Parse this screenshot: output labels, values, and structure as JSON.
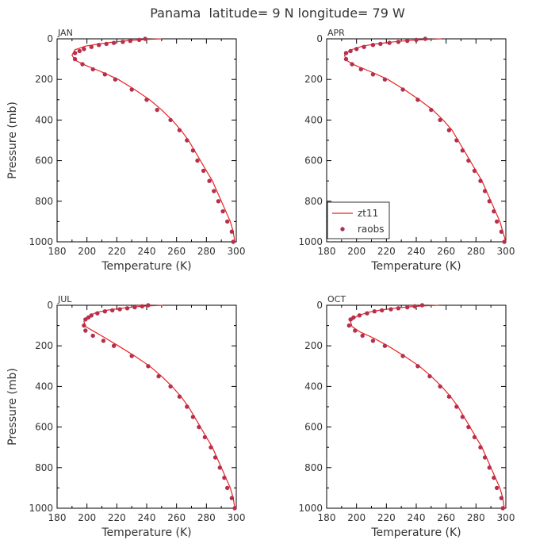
{
  "title": "Panama  latitude= 9 N longitude= 79 W",
  "colors": {
    "model_line": "#e8231f",
    "obs_points": "#b5304f",
    "axis": "#000000",
    "text": "#333333"
  },
  "chart_data": [
    {
      "type": "line",
      "panel": "JAN",
      "xlabel": "Temperature (K)",
      "ylabel": "Pressure (mb)",
      "xlim": [
        180,
        300
      ],
      "ylim": [
        1000,
        0
      ],
      "xticks": [
        180,
        200,
        220,
        240,
        260,
        280,
        300
      ],
      "yticks": [
        0,
        200,
        400,
        600,
        800,
        1000
      ],
      "grid": false,
      "series": [
        {
          "name": "zt11",
          "style": "line",
          "x": [
            250,
            239,
            229,
            219,
            209,
            199,
            192,
            190,
            192,
            199,
            209,
            221,
            232,
            242,
            250,
            257,
            263,
            268,
            272,
            276,
            280,
            284,
            287,
            290,
            293,
            296,
            298,
            299
          ],
          "y": [
            0,
            3,
            8,
            15,
            24,
            36,
            54,
            80,
            105,
            130,
            160,
            200,
            250,
            300,
            350,
            400,
            450,
            500,
            550,
            600,
            650,
            700,
            750,
            800,
            850,
            900,
            950,
            1000
          ]
        },
        {
          "name": "raobs",
          "style": "points",
          "x": [
            239,
            235,
            229,
            224,
            218,
            213,
            208,
            203,
            198,
            195,
            192,
            192,
            197,
            204,
            212,
            219,
            230,
            240,
            247,
            256,
            262,
            267,
            271,
            274,
            278,
            282,
            285,
            288,
            291,
            294,
            297,
            298
          ],
          "y": [
            0,
            5,
            10,
            15,
            20,
            25,
            30,
            40,
            50,
            60,
            70,
            100,
            125,
            150,
            175,
            200,
            250,
            300,
            350,
            400,
            450,
            500,
            550,
            600,
            650,
            700,
            750,
            800,
            850,
            900,
            950,
            1000
          ]
        }
      ]
    },
    {
      "type": "line",
      "panel": "APR",
      "xlabel": "Temperature (K)",
      "ylabel": "",
      "xlim": [
        180,
        300
      ],
      "ylim": [
        1000,
        0
      ],
      "xticks": [
        180,
        200,
        220,
        240,
        260,
        280,
        300
      ],
      "yticks": [
        0,
        200,
        400,
        600,
        800,
        1000
      ],
      "grid": false,
      "legend": {
        "position": "bottom-left",
        "entries": [
          "zt11",
          "raobs"
        ]
      },
      "series": [
        {
          "name": "zt11",
          "style": "line",
          "x": [
            257,
            246,
            235,
            225,
            214,
            204,
            196,
            192,
            193,
            199,
            209,
            221,
            232,
            242,
            251,
            258,
            264,
            268,
            272,
            276,
            280,
            284,
            287,
            290,
            293,
            296,
            298,
            300
          ],
          "y": [
            0,
            3,
            8,
            15,
            24,
            36,
            55,
            80,
            105,
            130,
            160,
            200,
            250,
            300,
            350,
            400,
            450,
            500,
            550,
            600,
            650,
            700,
            750,
            800,
            850,
            900,
            950,
            1000
          ]
        },
        {
          "name": "raobs",
          "style": "points",
          "x": [
            246,
            240,
            234,
            228,
            222,
            216,
            211,
            205,
            200,
            196,
            193,
            193,
            197,
            203,
            211,
            219,
            231,
            241,
            250,
            256,
            262,
            267,
            271,
            275,
            279,
            283,
            286,
            289,
            292,
            294,
            297,
            299
          ],
          "y": [
            0,
            5,
            10,
            15,
            20,
            25,
            30,
            40,
            50,
            60,
            70,
            100,
            125,
            150,
            175,
            200,
            250,
            300,
            350,
            400,
            450,
            500,
            550,
            600,
            650,
            700,
            750,
            800,
            850,
            900,
            950,
            1000
          ]
        }
      ]
    },
    {
      "type": "line",
      "panel": "JUL",
      "xlabel": "Temperature (K)",
      "ylabel": "Pressure (mb)",
      "xlim": [
        180,
        300
      ],
      "ylim": [
        1000,
        0
      ],
      "xticks": [
        180,
        200,
        220,
        240,
        260,
        280,
        300
      ],
      "yticks": [
        0,
        200,
        400,
        600,
        800,
        1000
      ],
      "grid": false,
      "series": [
        {
          "name": "zt11",
          "style": "line",
          "x": [
            251,
            241,
            232,
            223,
            214,
            206,
            201,
            198,
            199,
            205,
            212,
            221,
            232,
            242,
            250,
            257,
            263,
            268,
            272,
            276,
            280,
            284,
            287,
            290,
            293,
            296,
            298,
            299
          ],
          "y": [
            0,
            3,
            8,
            15,
            24,
            36,
            55,
            80,
            105,
            130,
            160,
            200,
            250,
            300,
            350,
            400,
            450,
            500,
            550,
            600,
            650,
            700,
            750,
            800,
            850,
            900,
            950,
            1000
          ]
        },
        {
          "name": "raobs",
          "style": "points",
          "x": [
            241,
            237,
            232,
            227,
            222,
            217,
            212,
            207,
            203,
            201,
            199,
            198,
            199,
            204,
            211,
            218,
            230,
            241,
            248,
            256,
            262,
            267,
            271,
            275,
            279,
            283,
            286,
            289,
            292,
            294,
            297,
            299
          ],
          "y": [
            0,
            5,
            10,
            15,
            20,
            25,
            30,
            40,
            50,
            60,
            70,
            100,
            125,
            150,
            175,
            200,
            250,
            300,
            350,
            400,
            450,
            500,
            550,
            600,
            650,
            700,
            750,
            800,
            850,
            900,
            950,
            1000
          ]
        }
      ]
    },
    {
      "type": "line",
      "panel": "OCT",
      "xlabel": "Temperature (K)",
      "ylabel": "",
      "xlim": [
        180,
        300
      ],
      "ylim": [
        1000,
        0
      ],
      "xticks": [
        180,
        200,
        220,
        240,
        260,
        280,
        300
      ],
      "yticks": [
        0,
        200,
        400,
        600,
        800,
        1000
      ],
      "grid": false,
      "series": [
        {
          "name": "zt11",
          "style": "line",
          "x": [
            255,
            245,
            235,
            225,
            216,
            207,
            200,
            196,
            197,
            202,
            211,
            221,
            232,
            242,
            250,
            257,
            263,
            268,
            272,
            276,
            280,
            284,
            287,
            290,
            293,
            296,
            298,
            299
          ],
          "y": [
            0,
            3,
            8,
            15,
            24,
            36,
            55,
            80,
            105,
            130,
            160,
            200,
            250,
            300,
            350,
            400,
            450,
            500,
            550,
            600,
            650,
            700,
            750,
            800,
            850,
            900,
            950,
            1000
          ]
        },
        {
          "name": "raobs",
          "style": "points",
          "x": [
            244,
            239,
            234,
            228,
            223,
            217,
            212,
            207,
            202,
            198,
            196,
            195,
            199,
            204,
            211,
            219,
            231,
            241,
            249,
            256,
            262,
            267,
            271,
            275,
            279,
            283,
            286,
            289,
            292,
            294,
            297,
            298
          ],
          "y": [
            0,
            5,
            10,
            15,
            20,
            25,
            30,
            40,
            50,
            60,
            70,
            100,
            125,
            150,
            175,
            200,
            250,
            300,
            350,
            400,
            450,
            500,
            550,
            600,
            650,
            700,
            750,
            800,
            850,
            900,
            950,
            1000
          ]
        }
      ]
    }
  ]
}
